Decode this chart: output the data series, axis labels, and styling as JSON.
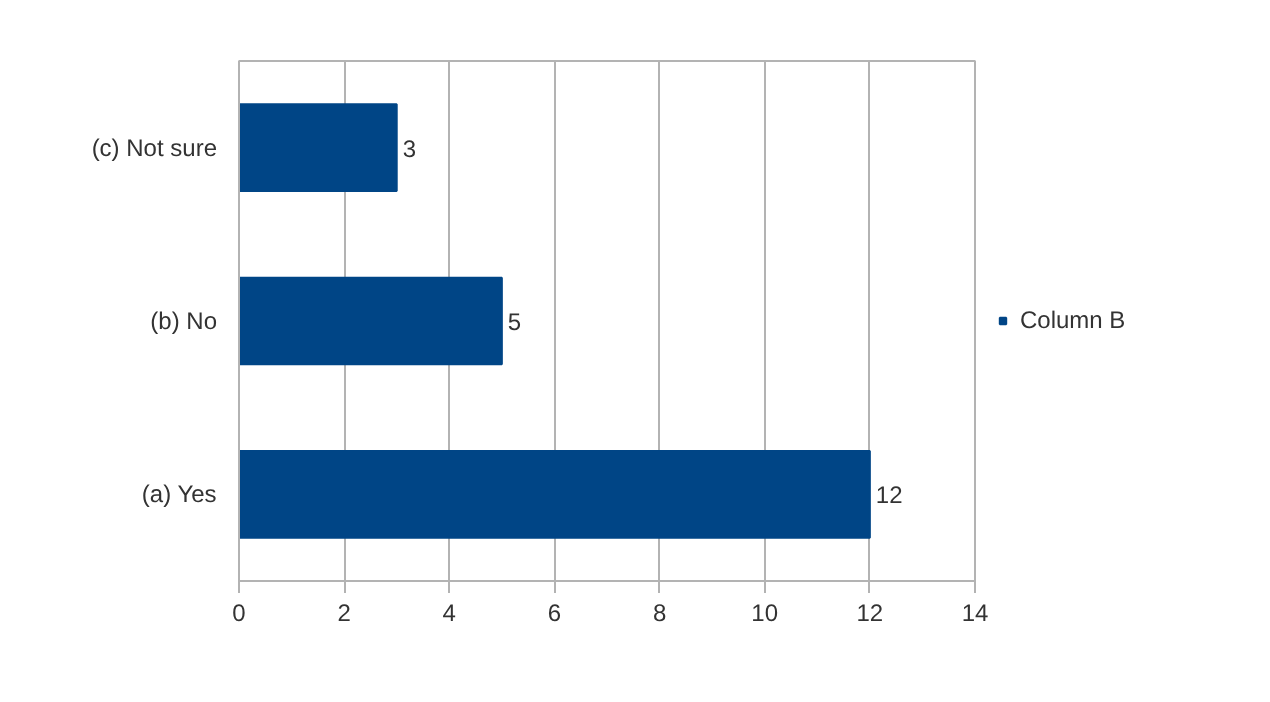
{
  "chart_data": {
    "type": "bar",
    "orientation": "horizontal",
    "categories": [
      "(c) Not sure",
      "(b) No",
      "(a) Yes"
    ],
    "series": [
      {
        "name": "Column B",
        "color": "#004586",
        "values": [
          3,
          5,
          12
        ]
      }
    ],
    "xlim": [
      0,
      14
    ],
    "xticks": [
      0,
      2,
      4,
      6,
      8,
      10,
      12,
      14
    ],
    "grid": "x",
    "legend": "right",
    "data_labels": true
  }
}
